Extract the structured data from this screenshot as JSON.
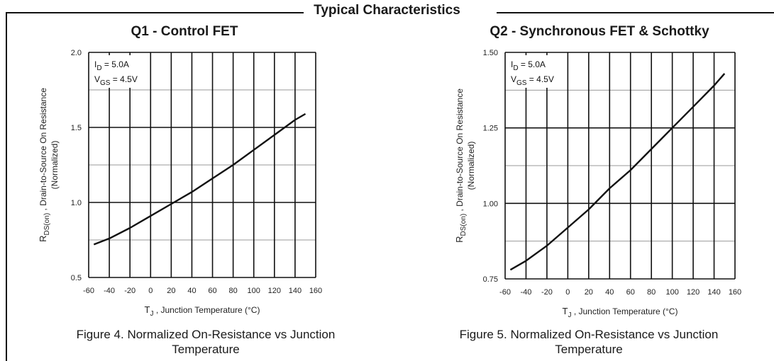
{
  "section_title": "Typical Characteristics",
  "chart_data": [
    {
      "type": "line",
      "title": "Q1 - Control FET",
      "xlabel_main": "T",
      "xlabel_sub": "J",
      "xlabel_rest": " , Junction Temperature (°C)",
      "ylabel_main": "R",
      "ylabel_sub": "DS(on)",
      "ylabel_rest": " , Drain-to-Source On Resistance",
      "ylabel_line2": "(Normalized)",
      "annotation_line1_main": "I",
      "annotation_line1_sub": "D",
      "annotation_line1_rest": " = 5.0A",
      "annotation_line2_main": "V",
      "annotation_line2_sub": "GS",
      "annotation_line2_rest": " = 4.5V",
      "x_ticks": [
        -60,
        -40,
        -20,
        0,
        20,
        40,
        60,
        80,
        100,
        120,
        140,
        160
      ],
      "x_tick_labels": [
        "-60",
        "-40",
        "-20",
        "0",
        "20",
        "40",
        "60",
        "80",
        "100",
        "120",
        "140",
        "160"
      ],
      "y_ticks": [
        0.5,
        1.0,
        1.5,
        2.0
      ],
      "y_tick_labels": [
        "0.5",
        "1.0",
        "1.5",
        "2.0"
      ],
      "xlim": [
        -60,
        160
      ],
      "ylim": [
        0.5,
        2.0
      ],
      "y_minor_step": 0.25,
      "series": [
        {
          "x": [
            -55,
            -40,
            -20,
            0,
            20,
            40,
            60,
            80,
            100,
            120,
            140,
            150
          ],
          "y": [
            0.72,
            0.76,
            0.83,
            0.91,
            0.99,
            1.07,
            1.16,
            1.25,
            1.35,
            1.45,
            1.55,
            1.59
          ]
        }
      ],
      "caption_line1": "Figure 4. Normalized On-Resistance vs Junction",
      "caption_line2": "Temperature"
    },
    {
      "type": "line",
      "title": "Q2 - Synchronous FET & Schottky",
      "xlabel_main": "T",
      "xlabel_sub": "J",
      "xlabel_rest": " , Junction Temperature (°C)",
      "ylabel_main": "R",
      "ylabel_sub": "DS(on)",
      "ylabel_rest": " , Drain-to-Source On Resistance",
      "ylabel_line2": "(Normalized)",
      "annotation_line1_main": "I",
      "annotation_line1_sub": "D",
      "annotation_line1_rest": " = 5.0A",
      "annotation_line2_main": "V",
      "annotation_line2_sub": "GS",
      "annotation_line2_rest": " = 4.5V",
      "x_ticks": [
        -60,
        -40,
        -20,
        0,
        20,
        40,
        60,
        80,
        100,
        120,
        140,
        160
      ],
      "x_tick_labels": [
        "-60",
        "-40",
        "-20",
        "0",
        "20",
        "40",
        "60",
        "80",
        "100",
        "120",
        "140",
        "160"
      ],
      "y_ticks": [
        0.75,
        1.0,
        1.25,
        1.5
      ],
      "y_tick_labels": [
        "0.75",
        "1.00",
        "1.25",
        "1.50"
      ],
      "xlim": [
        -60,
        160
      ],
      "ylim": [
        0.75,
        1.5
      ],
      "y_minor_step": 0.125,
      "series": [
        {
          "x": [
            -55,
            -40,
            -20,
            0,
            20,
            40,
            60,
            80,
            100,
            120,
            140,
            150
          ],
          "y": [
            0.78,
            0.81,
            0.86,
            0.92,
            0.98,
            1.05,
            1.11,
            1.18,
            1.25,
            1.32,
            1.39,
            1.43
          ]
        }
      ],
      "caption_line1": "Figure 5. Normalized On-Resistance vs Junction",
      "caption_line2": "Temperature"
    }
  ]
}
